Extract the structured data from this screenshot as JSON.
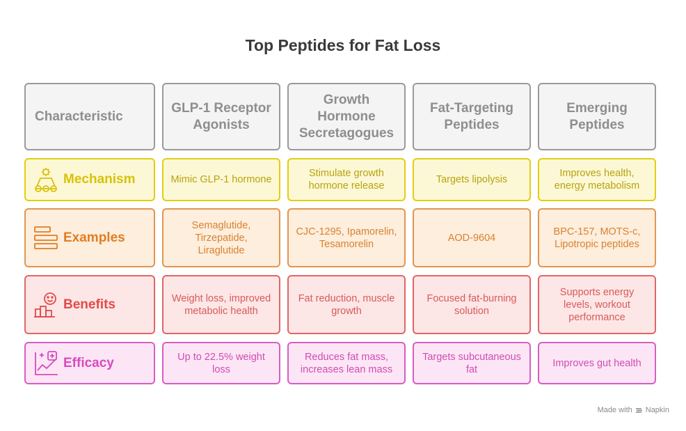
{
  "title": "Top Peptides for Fat Loss",
  "header": {
    "characteristic": "Characteristic",
    "columns": [
      "GLP-1 Receptor Agonists",
      "Growth Hormone Secretagogues",
      "Fat-Targeting Peptides",
      "Emerging Peptides"
    ]
  },
  "rows": [
    {
      "label": "Mechanism",
      "icon": "gears-conveyor-icon",
      "cells": [
        "Mimic GLP-1 hormone",
        "Stimulate growth hormone release",
        "Targets lipolysis",
        "Improves health, energy metabolism"
      ]
    },
    {
      "label": "Examples",
      "icon": "stacked-bars-icon",
      "cells": [
        "Semaglutide, Tirzepatide, Liraglutide",
        "CJC-1295, Ipamorelin, Tesamorelin",
        "AOD-9604",
        "BPC-157, MOTS-c, Lipotropic peptides"
      ]
    },
    {
      "label": "Benefits",
      "icon": "smiley-chart-icon",
      "cells": [
        "Weight loss, improved metabolic health",
        "Fat reduction, muscle growth",
        "Focused fat-burning solution",
        "Supports energy levels, workout performance"
      ]
    },
    {
      "label": "Efficacy",
      "icon": "chart-plus-icon",
      "cells": [
        "Up to 22.5% weight loss",
        "Reduces fat mass, increases lean mass",
        "Targets subcutaneous fat",
        "Improves gut health"
      ]
    }
  ],
  "footer": {
    "made_with": "Made with",
    "brand": "Napkin"
  },
  "colors": {
    "header_border": "#9a9a9a",
    "mechanism": "#e3cd10",
    "examples": "#e29550",
    "benefits": "#e06666",
    "efficacy": "#d95cc2"
  }
}
